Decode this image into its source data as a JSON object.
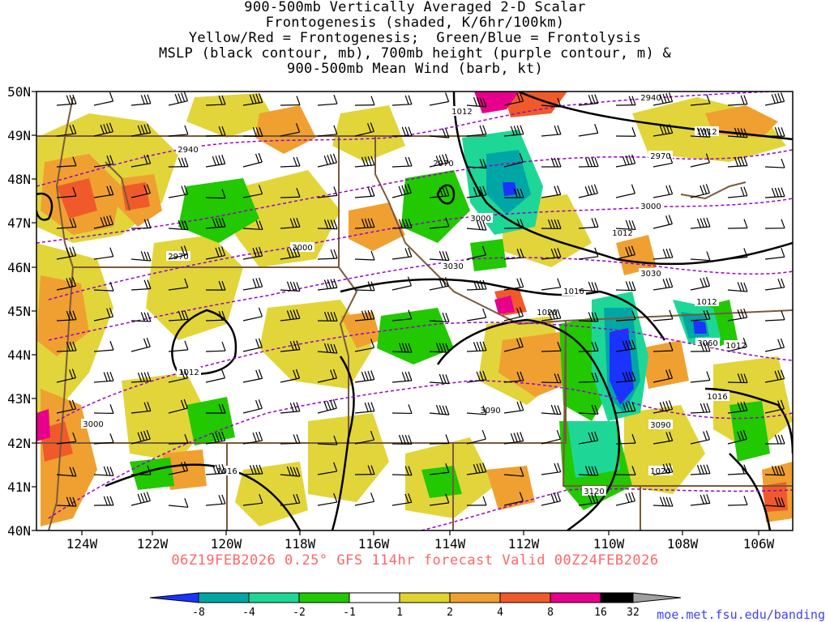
{
  "title_lines": [
    "900-500mb Vertically Averaged 2-D Scalar",
    "Frontogenesis (shaded, K/6hr/100km)",
    "Yellow/Red = Frontogenesis;  Green/Blue = Frontolysis",
    "MSLP (black contour, mb), 700mb height (purple contour, m) &",
    "900-500mb Mean Wind (barb, kt)"
  ],
  "subtitle": "06Z19FEB2026 0.25° GFS 114hr forecast Valid 00Z24FEB2026",
  "credit": "moe.met.fsu.edu/banding",
  "map_data": {
    "lat_labels": [
      "50N",
      "49N",
      "48N",
      "47N",
      "46N",
      "45N",
      "44N",
      "43N",
      "42N",
      "41N",
      "40N"
    ],
    "lon_labels": [
      "124W",
      "122W",
      "120W",
      "118W",
      "116W",
      "114W",
      "112W",
      "110W",
      "108W",
      "106W"
    ],
    "mslp_labels": [
      "1012",
      "1012",
      "1012",
      "1012",
      "1016",
      "1020",
      "1012",
      "1012",
      "1016",
      "1016",
      "1020"
    ],
    "height_labels": [
      "2940",
      "2940",
      "2970",
      "2970",
      "2970",
      "3000",
      "3000",
      "3000",
      "3030",
      "3030",
      "3060",
      "3000",
      "3090",
      "3090",
      "3120"
    ],
    "colorbar": {
      "labels": [
        "-8",
        "-4",
        "-2",
        "-1",
        "1",
        "2",
        "4",
        "8",
        "16",
        "32"
      ],
      "colors": [
        "#1a33ff",
        "#00a6a6",
        "#1ed796",
        "#22c800",
        "#ffffff",
        "#e0d330",
        "#f0a030",
        "#f05a2a",
        "#e6008c",
        "#000000",
        "#a0a0a0"
      ]
    },
    "colors": {
      "coast": "#7a5a3a",
      "mslp": "#000000",
      "height": "#9a00d0",
      "subtitle": "#ff6666",
      "credit": "#4040ff"
    }
  }
}
